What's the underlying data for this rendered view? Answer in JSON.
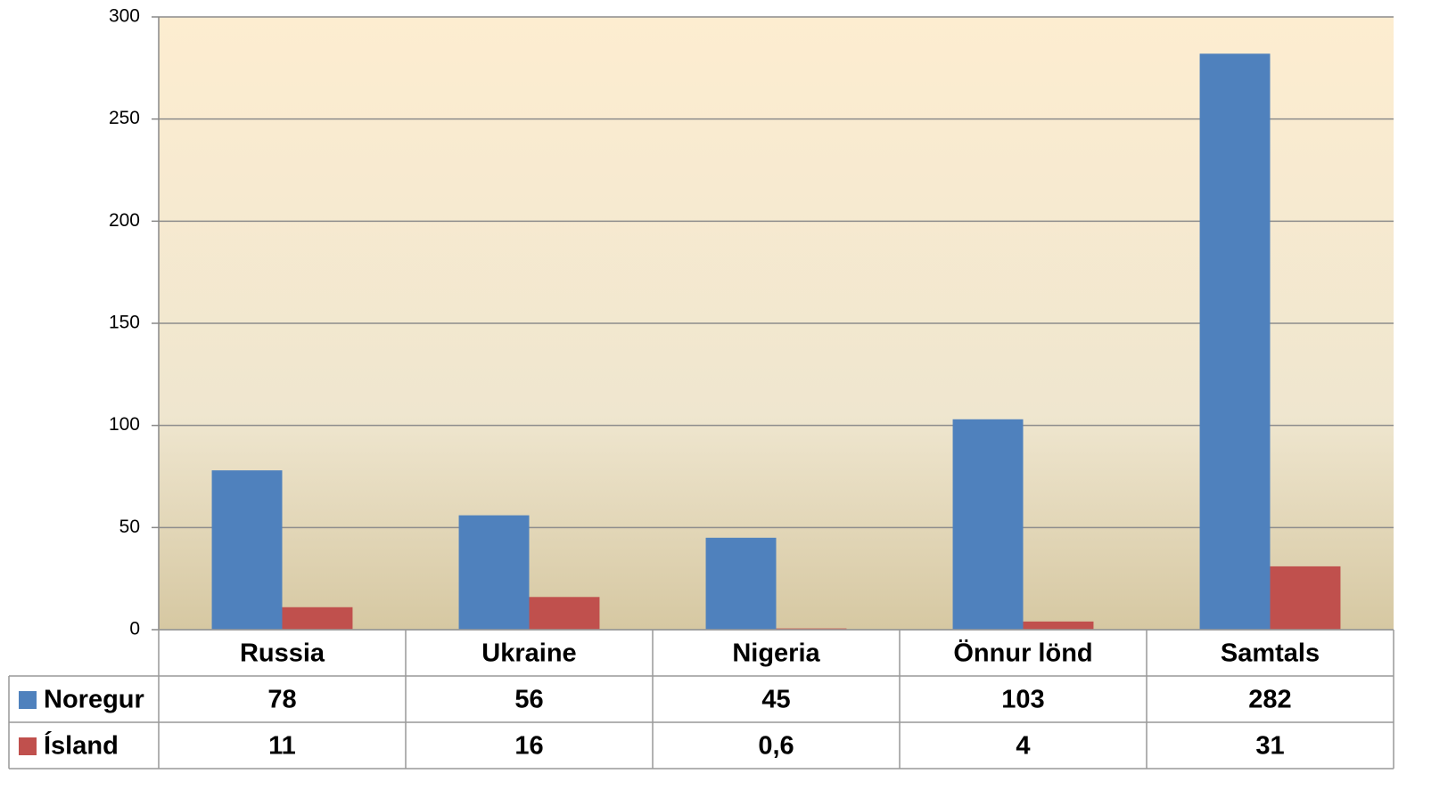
{
  "chart_data": {
    "type": "bar",
    "categories": [
      "Russia",
      "Ukraine",
      "Nigeria",
      "Önnur lönd",
      "Samtals"
    ],
    "series": [
      {
        "name": "Noregur",
        "color": "#4f81bd",
        "values": [
          78,
          56,
          45,
          103,
          282
        ]
      },
      {
        "name": "Ísland",
        "color": "#c0504d",
        "values": [
          11,
          16,
          0.6,
          4,
          31
        ],
        "value_labels": [
          "11",
          "16",
          "0,6",
          "4",
          "31"
        ]
      }
    ],
    "ylim": [
      0,
      300
    ],
    "yticks": [
      0,
      50,
      100,
      150,
      200,
      250,
      300
    ],
    "grid": true
  }
}
